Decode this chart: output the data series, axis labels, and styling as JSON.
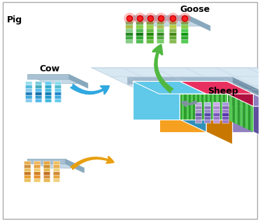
{
  "background_color": "#ffffff",
  "labels": {
    "pig": "Pig",
    "cow": "Cow",
    "sheep": "Sheep",
    "goose": "Goose"
  },
  "colors": {
    "orange_block": "#f5a020",
    "orange_dark": "#c87800",
    "purple_block": "#9080c0",
    "purple_dark": "#6050a0",
    "purple_side": "#7060b0",
    "cyan_block": "#60c8e8",
    "cyan_dark": "#3090b8",
    "red_block": "#e83060",
    "red_dark": "#b01040",
    "green_stripe_a": "#2d9c2d",
    "green_stripe_b": "#55cc55",
    "green_dark": "#1a6a1a",
    "platform_top": "#c8dce8",
    "platform_side": "#a0b8cc",
    "platform_dark": "#7090a8",
    "platform_bg": "#d0e4f0",
    "grid_line": "#e0eef8",
    "grid_dark": "#b0c8d8"
  },
  "arrow_colors": {
    "pig": "#e8a010",
    "cow": "#30a8e0",
    "sheep": "#8090a0",
    "goose": "#50b840"
  }
}
